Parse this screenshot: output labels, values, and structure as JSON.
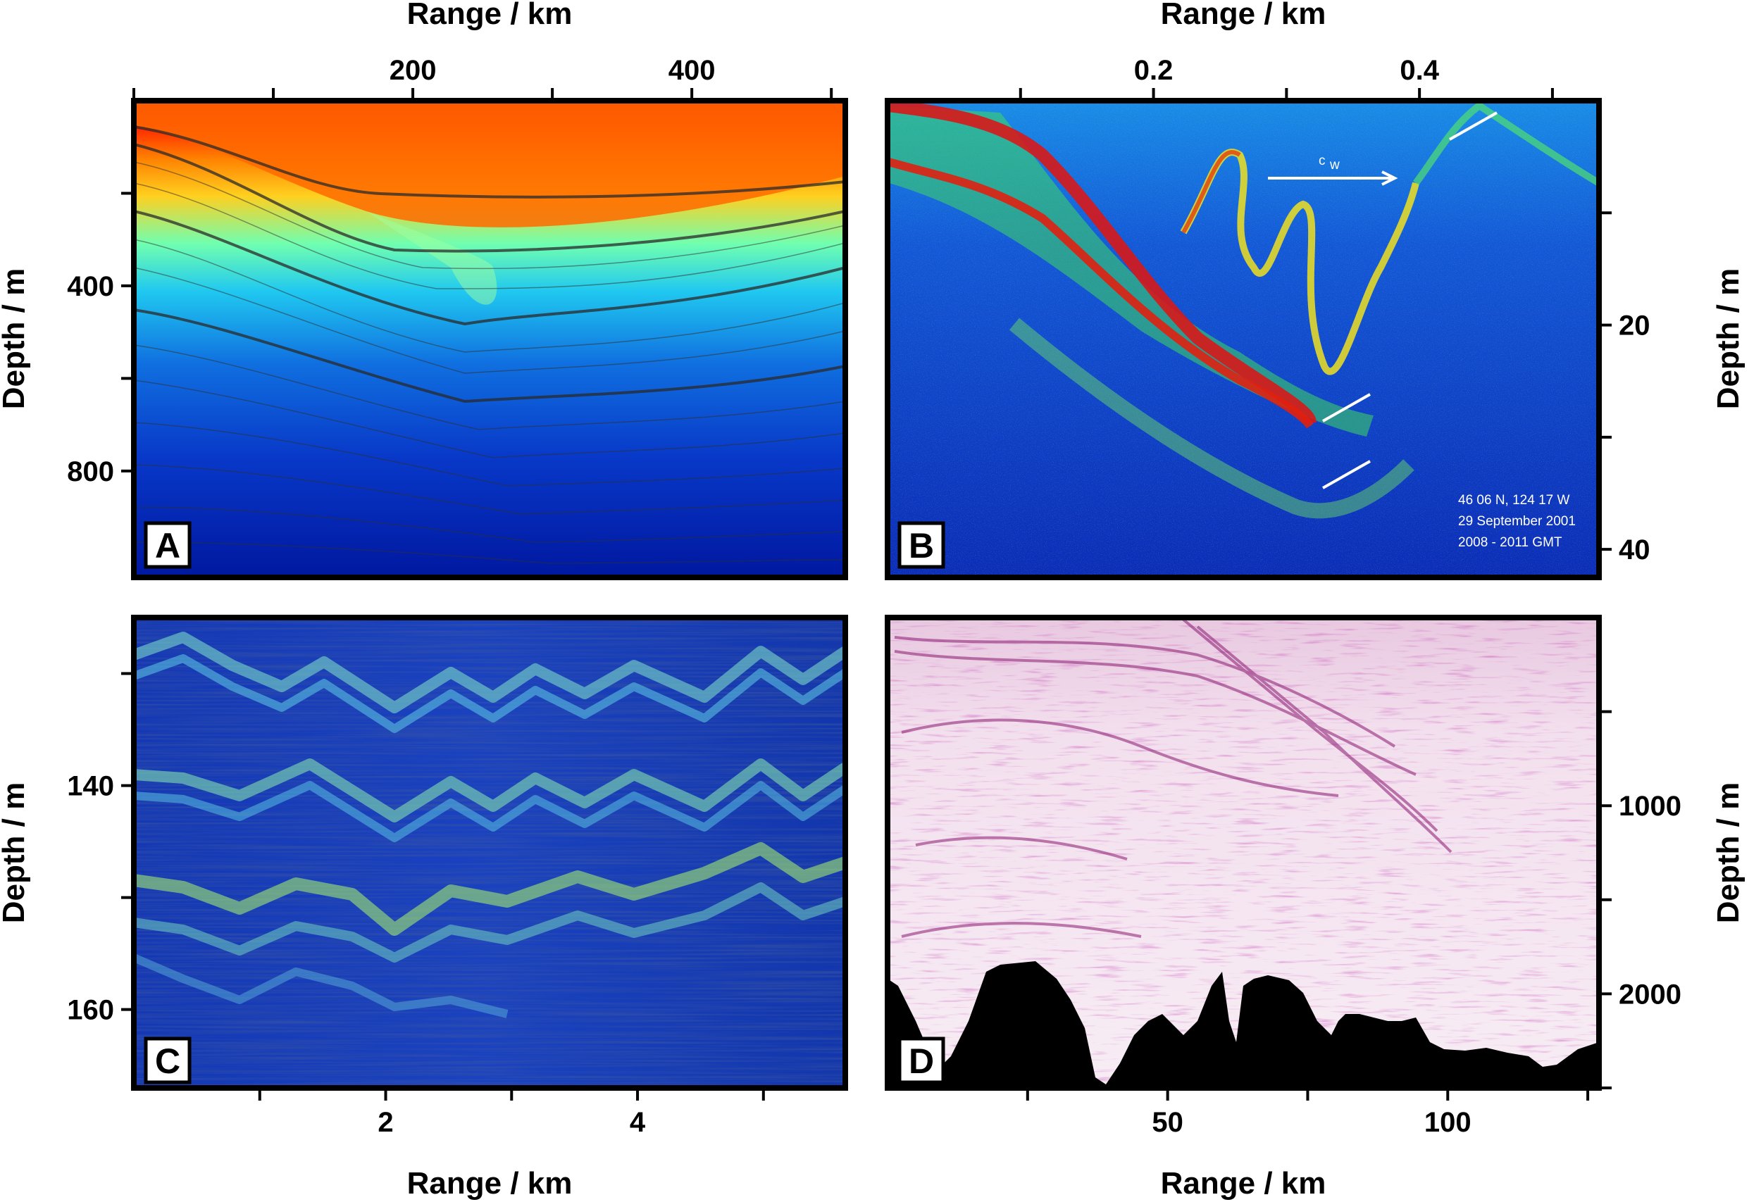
{
  "chart_data": [
    {
      "id": "A",
      "type": "heatmap",
      "panel_label": "A",
      "xlabel": "Range / km",
      "ylabel": "Depth / m",
      "x_axis_position": "top",
      "y_axis_position": "left",
      "xlim": [
        0,
        510
      ],
      "ylim": [
        0,
        1030
      ],
      "x_ticks": [
        0,
        100,
        200,
        300,
        400,
        500
      ],
      "x_tick_labels": [
        "",
        "",
        "200",
        "",
        "400",
        ""
      ],
      "y_ticks": [
        200,
        400,
        600,
        800
      ],
      "y_tick_labels": [
        "",
        "400",
        "",
        "800"
      ],
      "colormap": "jet",
      "contours": true
    },
    {
      "id": "B",
      "type": "heatmap",
      "panel_label": "B",
      "xlabel": "Range / km",
      "ylabel": "Depth / m",
      "x_axis_position": "top",
      "y_axis_position": "right",
      "xlim": [
        0,
        0.535
      ],
      "ylim": [
        0,
        42.5
      ],
      "x_ticks": [
        0.1,
        0.2,
        0.3,
        0.4,
        0.5
      ],
      "x_tick_labels": [
        "",
        "0.2",
        "",
        "0.4",
        ""
      ],
      "y_ticks": [
        10,
        20,
        30,
        40
      ],
      "y_tick_labels": [
        "",
        "20",
        "",
        "40"
      ],
      "colormap": "jet",
      "annotations": [
        "c",
        "w",
        "46 06 N, 124 17 W",
        "29 September 2001",
        "2008 - 2011 GMT"
      ]
    },
    {
      "id": "C",
      "type": "heatmap",
      "panel_label": "C",
      "xlabel": "Range / km",
      "ylabel": "Depth / m",
      "x_axis_position": "bottom",
      "y_axis_position": "left",
      "xlim": [
        0,
        5.65
      ],
      "ylim": [
        125,
        167
      ],
      "x_ticks": [
        1,
        2,
        3,
        4,
        5
      ],
      "x_tick_labels": [
        "",
        "2",
        "",
        "4",
        ""
      ],
      "y_ticks": [
        130,
        140,
        150,
        160
      ],
      "y_tick_labels": [
        "",
        "140",
        "",
        "160"
      ],
      "colormap": "jet"
    },
    {
      "id": "D",
      "type": "heatmap",
      "panel_label": "D",
      "xlabel": "Range / km",
      "ylabel": "Depth / m",
      "x_axis_position": "bottom",
      "y_axis_position": "right",
      "xlim": [
        0,
        127
      ],
      "ylim": [
        0,
        2500
      ],
      "x_ticks": [
        25,
        50,
        75,
        100,
        125
      ],
      "x_tick_labels": [
        "",
        "50",
        "",
        "100",
        ""
      ],
      "y_ticks": [
        500,
        1000,
        1500,
        2000,
        2500
      ],
      "y_tick_labels": [
        "",
        "1000",
        "",
        "2000",
        ""
      ],
      "colormap": "seismic-magenta",
      "seabed_fill": "#000000"
    }
  ]
}
